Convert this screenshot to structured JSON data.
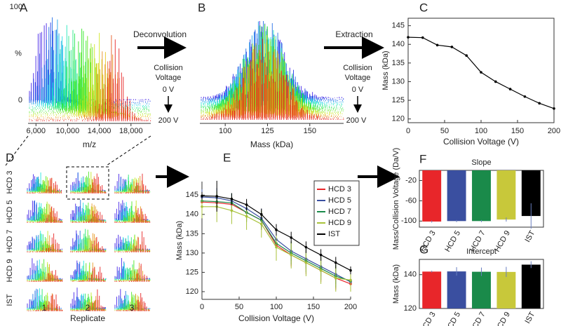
{
  "annotations": {
    "deconvolution": "Deconvolution",
    "extraction": "Extraction",
    "collision_voltage": [
      "Collision",
      "Voltage"
    ],
    "start_voltage": "0 V",
    "end_voltage": "200 V"
  },
  "chart_data": [
    {
      "type": "spectrum",
      "panel": "A",
      "xlabel": "m/z",
      "ylabel": "%",
      "xlim": [
        5000,
        20500
      ],
      "xticks": [
        {
          "value": 6000,
          "label": "6,000"
        },
        {
          "value": 10000,
          "label": "10,000"
        },
        {
          "value": 14000,
          "label": "14,000"
        },
        {
          "value": 18000,
          "label": "18,000"
        }
      ],
      "ylim": [
        0,
        100
      ],
      "yticks": [
        0,
        100
      ]
    },
    {
      "type": "spectrum",
      "panel": "B",
      "xlabel": "Mass (kDa)",
      "xlim": [
        85,
        170
      ],
      "xticks": [
        100,
        125,
        150
      ]
    },
    {
      "type": "line",
      "panel": "C",
      "xlabel": "Collision Voltage (V)",
      "ylabel": "Mass (kDa)",
      "xlim": [
        0,
        200
      ],
      "ylim": [
        119,
        147
      ],
      "xticks": [
        0,
        50,
        100,
        150,
        200
      ],
      "yticks": [
        120,
        125,
        130,
        135,
        140,
        145
      ],
      "x": [
        0,
        20,
        40,
        60,
        80,
        100,
        120,
        140,
        160,
        180,
        200
      ],
      "series": [
        {
          "color": "#000000",
          "values": [
            141.9,
            141.8,
            139.8,
            139.3,
            137.0,
            132.5,
            130.0,
            128.0,
            126.0,
            124.2,
            122.8
          ]
        }
      ]
    },
    {
      "type": "thumbnails",
      "panel": "D",
      "rows": [
        "HCD 3",
        "HCD 5",
        "HCD 7",
        "HCD 9",
        "IST"
      ],
      "columns": [
        "1",
        "2",
        "3"
      ],
      "xlabel": "Replicate"
    },
    {
      "type": "line",
      "panel": "E",
      "xlabel": "Collision Voltage (V)",
      "ylabel": "Mass (kDa)",
      "xlim": [
        0,
        200
      ],
      "ylim": [
        118,
        148.5
      ],
      "xticks": [
        0,
        50,
        100,
        150,
        200
      ],
      "yticks": [
        120,
        125,
        130,
        135,
        140,
        145
      ],
      "x": [
        0,
        20,
        40,
        60,
        80,
        100,
        120,
        140,
        160,
        180,
        200
      ],
      "series": [
        {
          "name": "HCD 3",
          "color": "#e8262a",
          "values": [
            143.2,
            143.0,
            142.6,
            140.5,
            138.5,
            132.0,
            129.5,
            127.5,
            125.5,
            123.5,
            122.0
          ],
          "errors": [
            1.5,
            2.0,
            2.0,
            2.0,
            2.5,
            3.0,
            3.0,
            3.0,
            3.0,
            3.0,
            2.0
          ]
        },
        {
          "name": "HCD 5",
          "color": "#3a4fa0",
          "values": [
            144.5,
            144.3,
            143.5,
            141.5,
            139.0,
            133.5,
            130.5,
            128.5,
            126.5,
            124.5,
            122.5
          ],
          "errors": [
            2.0,
            2.5,
            2.0,
            2.0,
            2.5,
            2.5,
            2.5,
            2.5,
            2.5,
            2.5,
            2.0
          ]
        },
        {
          "name": "HCD 7",
          "color": "#1a8a4a",
          "values": [
            143.5,
            143.3,
            143.0,
            140.5,
            138.5,
            132.5,
            130.0,
            128.0,
            126.0,
            124.0,
            122.8
          ],
          "errors": [
            2.0,
            2.0,
            2.5,
            2.5,
            2.5,
            3.0,
            3.0,
            3.0,
            3.0,
            3.0,
            2.5
          ]
        },
        {
          "name": "HCD 9",
          "color": "#a8c23a",
          "values": [
            142.0,
            142.0,
            141.0,
            139.5,
            137.5,
            131.5,
            129.5,
            127.5,
            125.5,
            123.5,
            123.0
          ],
          "errors": [
            3.0,
            4.0,
            3.5,
            3.5,
            3.5,
            3.5,
            3.5,
            3.5,
            3.5,
            3.5,
            3.0
          ]
        },
        {
          "name": "IST",
          "color": "#000000",
          "values": [
            144.8,
            144.7,
            144.0,
            142.5,
            140.0,
            136.0,
            134.0,
            131.5,
            129.5,
            127.5,
            125.5
          ],
          "errors": [
            1.0,
            4.0,
            1.5,
            1.5,
            1.5,
            1.5,
            1.5,
            1.5,
            1.5,
            1.5,
            1.0
          ]
        }
      ]
    },
    {
      "type": "bar",
      "panel": "F",
      "title": "Slope",
      "ylabel": "Mass/Collision Voltage (Da/V)",
      "categories": [
        "HCD 3",
        "HCD 5",
        "HCD 7",
        "HCD 9",
        "IST"
      ],
      "values": [
        -101,
        -100,
        -100,
        -97,
        -90
      ],
      "errors": [
        2,
        2,
        2,
        4,
        25
      ],
      "colors": [
        "#e8262a",
        "#3a4fa0",
        "#1a8a4a",
        "#c8c83a",
        "#000000"
      ],
      "ylim": [
        -112,
        0
      ],
      "yticks": [
        -100,
        -60,
        -20
      ]
    },
    {
      "type": "bar",
      "panel": "G",
      "title": "Intercept",
      "ylabel": "Mass (kDa)",
      "categories": [
        "HCD 3",
        "HCD 5",
        "HCD 7",
        "HCD 9",
        "IST"
      ],
      "values": [
        141.8,
        141.9,
        141.7,
        141.6,
        145.9
      ],
      "errors": [
        0.5,
        2.5,
        2.5,
        3.0,
        2.0
      ],
      "colors": [
        "#e8262a",
        "#3a4fa0",
        "#1a8a4a",
        "#c8c83a",
        "#000000"
      ],
      "ylim": [
        120,
        149
      ],
      "yticks": [
        120,
        140
      ]
    }
  ]
}
